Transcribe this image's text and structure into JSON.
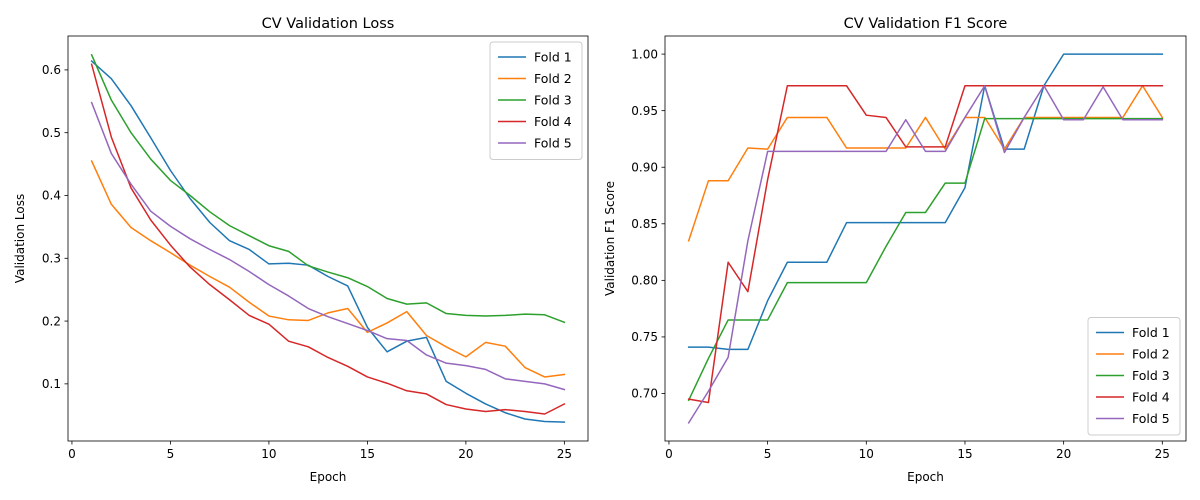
{
  "chart_data": [
    {
      "type": "line",
      "title": "CV Validation Loss",
      "xlabel": "Epoch",
      "ylabel": "Validation Loss",
      "xlim": [
        -0.2,
        26.2
      ],
      "ylim": [
        0.009,
        0.654
      ],
      "xticks": [
        0,
        5,
        10,
        15,
        20,
        25
      ],
      "yticks": [
        0.1,
        0.2,
        0.3,
        0.4,
        0.5,
        0.6
      ],
      "ytick_labels": [
        "0.1",
        "0.2",
        "0.3",
        "0.4",
        "0.5",
        "0.6"
      ],
      "legend": "top-right",
      "grid": false,
      "x": [
        1,
        2,
        3,
        4,
        5,
        6,
        7,
        8,
        9,
        10,
        11,
        12,
        13,
        14,
        15,
        16,
        17,
        18,
        19,
        20,
        21,
        22,
        23,
        24,
        25
      ],
      "series": [
        {
          "name": "Fold 1",
          "color": "#1f77b4",
          "values": [
            0.614,
            0.586,
            0.543,
            0.492,
            0.44,
            0.395,
            0.357,
            0.328,
            0.314,
            0.291,
            0.292,
            0.289,
            0.271,
            0.256,
            0.19,
            0.151,
            0.168,
            0.174,
            0.104,
            0.085,
            0.068,
            0.054,
            0.044,
            0.04,
            0.039
          ]
        },
        {
          "name": "Fold 2",
          "color": "#ff7f0e",
          "values": [
            0.455,
            0.386,
            0.349,
            0.328,
            0.309,
            0.289,
            0.271,
            0.254,
            0.23,
            0.208,
            0.202,
            0.201,
            0.213,
            0.22,
            0.182,
            0.197,
            0.215,
            0.177,
            0.159,
            0.143,
            0.166,
            0.16,
            0.126,
            0.111,
            0.115
          ]
        },
        {
          "name": "Fold 3",
          "color": "#2ca02c",
          "values": [
            0.624,
            0.552,
            0.5,
            0.458,
            0.424,
            0.4,
            0.374,
            0.352,
            0.336,
            0.32,
            0.311,
            0.288,
            0.278,
            0.269,
            0.255,
            0.236,
            0.227,
            0.229,
            0.212,
            0.209,
            0.208,
            0.209,
            0.211,
            0.21,
            0.198
          ]
        },
        {
          "name": "Fold 4",
          "color": "#d62728",
          "values": [
            0.609,
            0.493,
            0.412,
            0.361,
            0.321,
            0.286,
            0.258,
            0.234,
            0.209,
            0.195,
            0.168,
            0.159,
            0.142,
            0.128,
            0.111,
            0.101,
            0.089,
            0.084,
            0.067,
            0.06,
            0.056,
            0.059,
            0.056,
            0.052,
            0.068
          ]
        },
        {
          "name": "Fold 5",
          "color": "#9467bd",
          "values": [
            0.548,
            0.467,
            0.418,
            0.375,
            0.351,
            0.331,
            0.314,
            0.298,
            0.279,
            0.258,
            0.24,
            0.22,
            0.207,
            0.196,
            0.185,
            0.172,
            0.169,
            0.146,
            0.133,
            0.129,
            0.123,
            0.108,
            0.104,
            0.1,
            0.091
          ]
        }
      ]
    },
    {
      "type": "line",
      "title": "CV Validation F1 Score",
      "xlabel": "Epoch",
      "ylabel": "Validation F1 Score",
      "xlim": [
        -0.2,
        26.2
      ],
      "ylim": [
        0.658,
        1.016
      ],
      "xticks": [
        0,
        5,
        10,
        15,
        20,
        25
      ],
      "yticks": [
        0.7,
        0.75,
        0.8,
        0.85,
        0.9,
        0.95,
        1.0
      ],
      "ytick_labels": [
        "0.70",
        "0.75",
        "0.80",
        "0.85",
        "0.90",
        "0.95",
        "1.00"
      ],
      "legend": "bottom-right",
      "grid": false,
      "x": [
        1,
        2,
        3,
        4,
        5,
        6,
        7,
        8,
        9,
        10,
        11,
        12,
        13,
        14,
        15,
        16,
        17,
        18,
        19,
        20,
        21,
        22,
        23,
        24,
        25
      ],
      "series": [
        {
          "name": "Fold 1",
          "color": "#1f77b4",
          "values": [
            0.741,
            0.741,
            0.739,
            0.739,
            0.782,
            0.816,
            0.816,
            0.816,
            0.851,
            0.851,
            0.851,
            0.851,
            0.851,
            0.851,
            0.882,
            0.972,
            0.916,
            0.916,
            0.972,
            1.0,
            1.0,
            1.0,
            1.0,
            1.0,
            1.0
          ]
        },
        {
          "name": "Fold 2",
          "color": "#ff7f0e",
          "values": [
            0.835,
            0.888,
            0.888,
            0.917,
            0.916,
            0.944,
            0.944,
            0.944,
            0.917,
            0.917,
            0.917,
            0.917,
            0.944,
            0.916,
            0.944,
            0.944,
            0.916,
            0.944,
            0.944,
            0.944,
            0.944,
            0.944,
            0.944,
            0.972,
            0.944
          ]
        },
        {
          "name": "Fold 3",
          "color": "#2ca02c",
          "values": [
            0.694,
            0.731,
            0.765,
            0.765,
            0.765,
            0.798,
            0.798,
            0.798,
            0.798,
            0.798,
            0.83,
            0.86,
            0.86,
            0.886,
            0.886,
            0.943,
            0.943,
            0.943,
            0.943,
            0.943,
            0.943,
            0.943,
            0.943,
            0.943,
            0.943
          ]
        },
        {
          "name": "Fold 4",
          "color": "#d62728",
          "values": [
            0.695,
            0.692,
            0.816,
            0.79,
            0.889,
            0.972,
            0.972,
            0.972,
            0.972,
            0.946,
            0.944,
            0.918,
            0.918,
            0.918,
            0.972,
            0.972,
            0.972,
            0.972,
            0.972,
            0.972,
            0.972,
            0.972,
            0.972,
            0.972,
            0.972
          ]
        },
        {
          "name": "Fold 5",
          "color": "#9467bd",
          "values": [
            0.674,
            0.702,
            0.732,
            0.835,
            0.914,
            0.914,
            0.914,
            0.914,
            0.914,
            0.914,
            0.914,
            0.942,
            0.914,
            0.914,
            0.944,
            0.972,
            0.913,
            0.944,
            0.972,
            0.942,
            0.942,
            0.971,
            0.942,
            0.942,
            0.942
          ]
        }
      ]
    }
  ]
}
